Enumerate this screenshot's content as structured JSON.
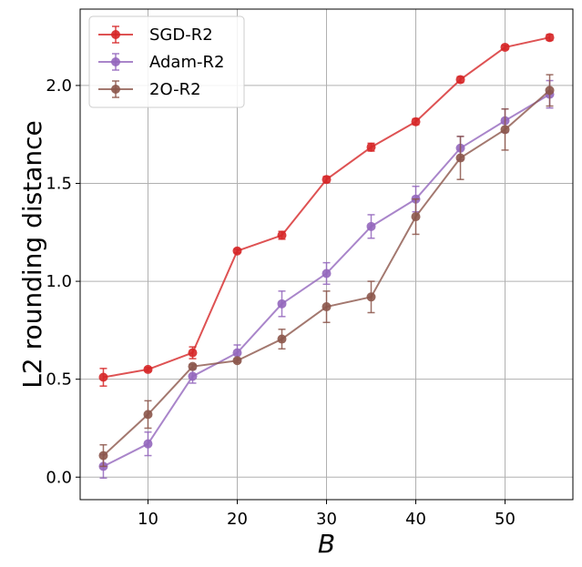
{
  "chart_data": {
    "type": "line",
    "title": "",
    "xlabel": "B",
    "ylabel": "L2 rounding distance",
    "x": [
      5,
      10,
      15,
      20,
      25,
      30,
      35,
      40,
      45,
      50,
      55
    ],
    "xlim": [
      2.4,
      57.6
    ],
    "ylim": [
      -0.115,
      2.39
    ],
    "xticks": [
      10,
      20,
      30,
      40,
      50
    ],
    "xtick_labels": [
      "10",
      "20",
      "30",
      "40",
      "50"
    ],
    "yticks": [
      0.0,
      0.5,
      1.0,
      1.5,
      2.0
    ],
    "ytick_labels": [
      "0.0",
      "0.5",
      "1.0",
      "1.5",
      "2.0"
    ],
    "grid": true,
    "legend_position": "top-left",
    "series": [
      {
        "name": "SGD-R2",
        "color": "#d62728",
        "values": [
          0.51,
          0.55,
          0.635,
          1.155,
          1.235,
          1.52,
          1.685,
          1.815,
          2.03,
          2.195,
          2.245
        ],
        "errors": [
          0.045,
          0.01,
          0.03,
          0.01,
          0.02,
          0.015,
          0.02,
          0.015,
          0.015,
          0.01,
          0.015
        ]
      },
      {
        "name": "Adam-R2",
        "color": "#9467bd",
        "values": [
          0.055,
          0.17,
          0.515,
          0.635,
          0.885,
          1.04,
          1.28,
          1.42,
          1.68,
          1.82,
          1.955
        ],
        "errors": [
          0.06,
          0.06,
          0.035,
          0.04,
          0.065,
          0.055,
          0.06,
          0.065,
          0.06,
          0.06,
          0.07
        ]
      },
      {
        "name": "2O-R2",
        "color": "#8c564b",
        "values": [
          0.11,
          0.32,
          0.565,
          0.595,
          0.705,
          0.87,
          0.92,
          1.33,
          1.63,
          1.775,
          1.975
        ],
        "errors": [
          0.055,
          0.07,
          0.01,
          0.01,
          0.05,
          0.08,
          0.08,
          0.09,
          0.11,
          0.105,
          0.08
        ]
      }
    ]
  }
}
